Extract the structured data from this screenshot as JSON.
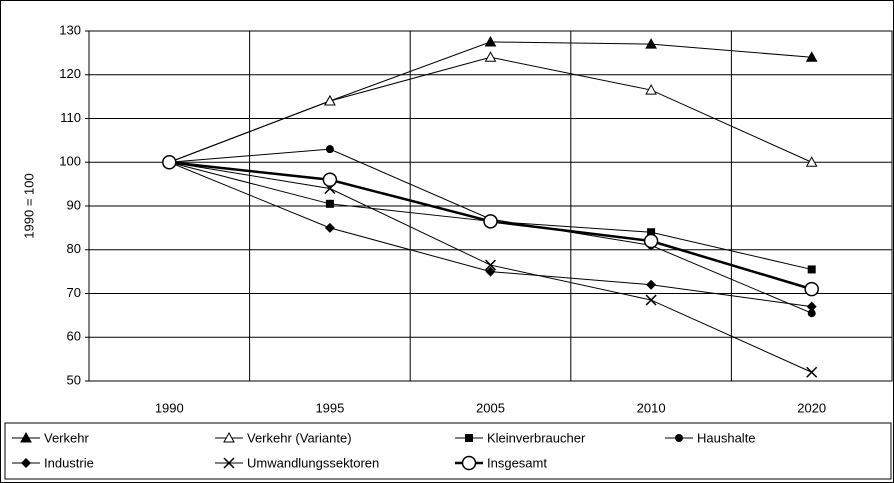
{
  "chart_data": {
    "type": "line",
    "y_label": "1990 = 100",
    "categories": [
      "1990",
      "1995",
      "2005",
      "2010",
      "2020"
    ],
    "ylim": [
      50,
      130
    ],
    "yticks": [
      50,
      60,
      70,
      80,
      90,
      100,
      110,
      120,
      130
    ],
    "grid": true,
    "legend": "bottom",
    "series": [
      {
        "name": "Verkehr",
        "color": "#000000",
        "marker": "triangle-filled",
        "line_width": 1,
        "values": [
          100,
          114,
          127.5,
          127,
          124
        ]
      },
      {
        "name": "Verkehr (Variante)",
        "color": "#000000",
        "marker": "triangle-open",
        "line_width": 1,
        "values": [
          100,
          114,
          124,
          116.5,
          100
        ]
      },
      {
        "name": "Kleinverbraucher",
        "color": "#000000",
        "marker": "square-filled",
        "line_width": 1,
        "values": [
          100,
          90.5,
          86.5,
          84,
          75.5
        ]
      },
      {
        "name": "Haushalte",
        "color": "#000000",
        "marker": "circle-filled",
        "line_width": 1,
        "values": [
          100,
          103,
          87,
          81,
          65.5
        ]
      },
      {
        "name": "Industrie",
        "color": "#000000",
        "marker": "diamond-filled",
        "line_width": 1,
        "values": [
          100,
          85,
          75,
          72,
          67
        ]
      },
      {
        "name": "Umwandlungssektoren",
        "color": "#000000",
        "marker": "x",
        "line_width": 1,
        "values": [
          100,
          94,
          76.5,
          68.5,
          52
        ]
      },
      {
        "name": "Insgesamt",
        "color": "#000000",
        "marker": "circle-open-large",
        "line_width": 2.5,
        "values": [
          100,
          96,
          86.5,
          82,
          71
        ]
      }
    ]
  }
}
